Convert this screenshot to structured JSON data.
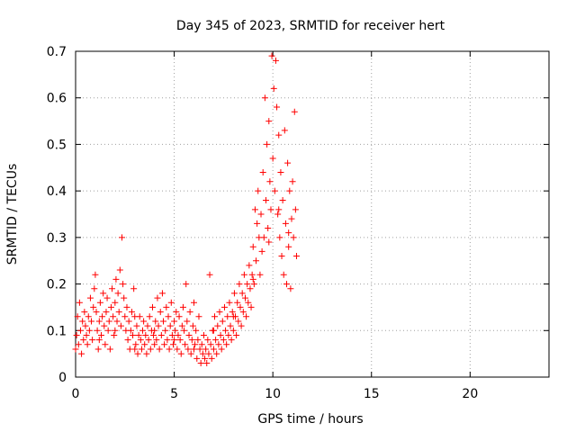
{
  "chart_data": {
    "type": "scatter",
    "title": "Day 345 of 2023, SRMTID for receiver hert",
    "xlabel": "GPS time / hours",
    "ylabel": "SRMTID / TECUs",
    "xlim": [
      0,
      24
    ],
    "ylim": [
      0,
      0.7
    ],
    "x_ticks": [
      0,
      5,
      10,
      15,
      20
    ],
    "x_tick_labels": [
      "0",
      "5",
      "10",
      "15",
      "20"
    ],
    "y_ticks": [
      0,
      0.1,
      0.2,
      0.3,
      0.4,
      0.5,
      0.6,
      0.7
    ],
    "y_tick_labels": [
      "0",
      "0.1",
      "0.2",
      "0.3",
      "0.4",
      "0.5",
      "0.6",
      "0.7"
    ],
    "grid": true,
    "marker": "+",
    "series": [
      {
        "name": "hert",
        "color": "#ff0000",
        "points": [
          [
            0.0,
            0.06
          ],
          [
            0.05,
            0.09
          ],
          [
            0.1,
            0.13
          ],
          [
            0.15,
            0.07
          ],
          [
            0.2,
            0.16
          ],
          [
            0.25,
            0.1
          ],
          [
            0.3,
            0.05
          ],
          [
            0.35,
            0.12
          ],
          [
            0.4,
            0.08
          ],
          [
            0.45,
            0.14
          ],
          [
            0.5,
            0.11
          ],
          [
            0.55,
            0.09
          ],
          [
            0.6,
            0.07
          ],
          [
            0.65,
            0.13
          ],
          [
            0.7,
            0.1
          ],
          [
            0.75,
            0.17
          ],
          [
            0.8,
            0.12
          ],
          [
            0.85,
            0.08
          ],
          [
            0.9,
            0.15
          ],
          [
            0.95,
            0.19
          ],
          [
            1.0,
            0.22
          ],
          [
            1.05,
            0.14
          ],
          [
            1.1,
            0.1
          ],
          [
            1.15,
            0.06
          ],
          [
            1.2,
            0.12
          ],
          [
            1.25,
            0.16
          ],
          [
            1.3,
            0.09
          ],
          [
            1.35,
            0.13
          ],
          [
            1.4,
            0.18
          ],
          [
            1.45,
            0.11
          ],
          [
            1.5,
            0.07
          ],
          [
            1.55,
            0.14
          ],
          [
            1.6,
            0.17
          ],
          [
            1.65,
            0.1
          ],
          [
            1.7,
            0.12
          ],
          [
            1.75,
            0.06
          ],
          [
            1.8,
            0.15
          ],
          [
            1.85,
            0.19
          ],
          [
            1.9,
            0.13
          ],
          [
            1.95,
            0.09
          ],
          [
            2.0,
            0.16
          ],
          [
            2.05,
            0.21
          ],
          [
            2.1,
            0.12
          ],
          [
            2.15,
            0.18
          ],
          [
            2.2,
            0.14
          ],
          [
            2.25,
            0.23
          ],
          [
            2.3,
            0.11
          ],
          [
            2.35,
            0.3
          ],
          [
            2.4,
            0.2
          ],
          [
            2.45,
            0.17
          ],
          [
            2.5,
            0.13
          ],
          [
            2.55,
            0.1
          ],
          [
            2.6,
            0.15
          ],
          [
            2.65,
            0.08
          ],
          [
            2.7,
            0.12
          ],
          [
            2.75,
            0.06
          ],
          [
            2.8,
            0.1
          ],
          [
            2.85,
            0.14
          ],
          [
            2.9,
            0.09
          ],
          [
            2.95,
            0.19
          ],
          [
            3.0,
            0.13
          ],
          [
            3.05,
            0.07
          ],
          [
            3.1,
            0.11
          ],
          [
            3.15,
            0.05
          ],
          [
            3.2,
            0.09
          ],
          [
            3.25,
            0.13
          ],
          [
            3.3,
            0.08
          ],
          [
            3.35,
            0.06
          ],
          [
            3.4,
            0.1
          ],
          [
            3.45,
            0.12
          ],
          [
            3.5,
            0.07
          ],
          [
            3.55,
            0.09
          ],
          [
            3.6,
            0.05
          ],
          [
            3.65,
            0.11
          ],
          [
            3.7,
            0.08
          ],
          [
            3.75,
            0.13
          ],
          [
            3.8,
            0.06
          ],
          [
            3.85,
            0.1
          ],
          [
            3.9,
            0.15
          ],
          [
            3.95,
            0.09
          ],
          [
            4.0,
            0.07
          ],
          [
            4.05,
            0.12
          ],
          [
            4.1,
            0.08
          ],
          [
            4.15,
            0.17
          ],
          [
            4.2,
            0.11
          ],
          [
            4.25,
            0.06
          ],
          [
            4.3,
            0.14
          ],
          [
            4.35,
            0.09
          ],
          [
            4.4,
            0.18
          ],
          [
            4.45,
            0.12
          ],
          [
            4.5,
            0.07
          ],
          [
            4.55,
            0.1
          ],
          [
            4.6,
            0.15
          ],
          [
            4.65,
            0.08
          ],
          [
            4.7,
            0.13
          ],
          [
            4.75,
            0.06
          ],
          [
            4.8,
            0.11
          ],
          [
            4.85,
            0.16
          ],
          [
            4.9,
            0.09
          ],
          [
            4.95,
            0.07
          ],
          [
            5.0,
            0.12
          ],
          [
            5.05,
            0.1
          ],
          [
            5.1,
            0.14
          ],
          [
            5.15,
            0.06
          ],
          [
            5.2,
            0.09
          ],
          [
            5.25,
            0.13
          ],
          [
            5.3,
            0.08
          ],
          [
            5.35,
            0.05
          ],
          [
            5.4,
            0.11
          ],
          [
            5.45,
            0.15
          ],
          [
            5.5,
            0.1
          ],
          [
            5.55,
            0.07
          ],
          [
            5.6,
            0.2
          ],
          [
            5.65,
            0.12
          ],
          [
            5.7,
            0.06
          ],
          [
            5.75,
            0.09
          ],
          [
            5.8,
            0.14
          ],
          [
            5.85,
            0.05
          ],
          [
            5.9,
            0.08
          ],
          [
            5.95,
            0.11
          ],
          [
            6.0,
            0.16
          ],
          [
            6.05,
            0.07
          ],
          [
            6.1,
            0.1
          ],
          [
            6.15,
            0.04
          ],
          [
            6.2,
            0.08
          ],
          [
            6.25,
            0.13
          ],
          [
            6.3,
            0.06
          ],
          [
            6.35,
            0.03
          ],
          [
            6.4,
            0.07
          ],
          [
            6.45,
            0.05
          ],
          [
            6.5,
            0.09
          ],
          [
            6.55,
            0.04
          ],
          [
            6.6,
            0.06
          ],
          [
            6.65,
            0.03
          ],
          [
            6.7,
            0.08
          ],
          [
            6.75,
            0.05
          ],
          [
            6.8,
            0.22
          ],
          [
            6.85,
            0.07
          ],
          [
            6.9,
            0.04
          ],
          [
            6.95,
            0.1
          ],
          [
            7.0,
            0.06
          ],
          [
            7.05,
            0.13
          ],
          [
            7.1,
            0.08
          ],
          [
            7.15,
            0.05
          ],
          [
            7.2,
            0.11
          ],
          [
            7.25,
            0.07
          ],
          [
            7.3,
            0.14
          ],
          [
            7.35,
            0.09
          ],
          [
            7.4,
            0.06
          ],
          [
            7.45,
            0.12
          ],
          [
            7.5,
            0.08
          ],
          [
            7.55,
            0.15
          ],
          [
            7.6,
            0.1
          ],
          [
            7.65,
            0.07
          ],
          [
            7.7,
            0.13
          ],
          [
            7.75,
            0.09
          ],
          [
            7.8,
            0.16
          ],
          [
            7.85,
            0.11
          ],
          [
            7.9,
            0.08
          ],
          [
            7.95,
            0.14
          ],
          [
            8.0,
            0.1
          ],
          [
            8.05,
            0.18
          ],
          [
            8.1,
            0.13
          ],
          [
            8.15,
            0.09
          ],
          [
            8.2,
            0.16
          ],
          [
            8.25,
            0.12
          ],
          [
            8.3,
            0.2
          ],
          [
            8.35,
            0.15
          ],
          [
            8.4,
            0.11
          ],
          [
            8.45,
            0.18
          ],
          [
            8.5,
            0.14
          ],
          [
            8.55,
            0.22
          ],
          [
            8.6,
            0.17
          ],
          [
            8.65,
            0.13
          ],
          [
            8.7,
            0.2
          ],
          [
            8.75,
            0.16
          ],
          [
            8.8,
            0.24
          ],
          [
            8.85,
            0.19
          ],
          [
            8.9,
            0.15
          ],
          [
            8.95,
            0.22
          ],
          [
            9.0,
            0.28
          ],
          [
            9.05,
            0.2
          ],
          [
            9.1,
            0.36
          ],
          [
            9.15,
            0.25
          ],
          [
            9.2,
            0.33
          ],
          [
            9.25,
            0.4
          ],
          [
            9.3,
            0.3
          ],
          [
            9.35,
            0.22
          ],
          [
            9.4,
            0.35
          ],
          [
            9.45,
            0.27
          ],
          [
            9.5,
            0.44
          ],
          [
            9.55,
            0.3
          ],
          [
            9.6,
            0.6
          ],
          [
            9.65,
            0.38
          ],
          [
            9.7,
            0.5
          ],
          [
            9.75,
            0.32
          ],
          [
            9.8,
            0.55
          ],
          [
            9.85,
            0.42
          ],
          [
            9.9,
            0.36
          ],
          [
            9.95,
            0.69
          ],
          [
            10.0,
            0.47
          ],
          [
            10.05,
            0.62
          ],
          [
            10.1,
            0.4
          ],
          [
            10.15,
            0.68
          ],
          [
            10.2,
            0.58
          ],
          [
            10.25,
            0.35
          ],
          [
            10.3,
            0.52
          ],
          [
            10.35,
            0.3
          ],
          [
            10.4,
            0.44
          ],
          [
            10.45,
            0.26
          ],
          [
            10.5,
            0.38
          ],
          [
            10.55,
            0.22
          ],
          [
            10.6,
            0.53
          ],
          [
            10.65,
            0.33
          ],
          [
            10.7,
            0.2
          ],
          [
            10.75,
            0.46
          ],
          [
            10.8,
            0.28
          ],
          [
            10.85,
            0.4
          ],
          [
            10.9,
            0.19
          ],
          [
            10.95,
            0.34
          ],
          [
            11.0,
            0.42
          ],
          [
            11.05,
            0.3
          ],
          [
            11.1,
            0.57
          ],
          [
            11.15,
            0.36
          ],
          [
            11.2,
            0.26
          ],
          [
            1.2,
            0.08
          ],
          [
            2.0,
            0.1
          ],
          [
            3.0,
            0.06
          ],
          [
            4.0,
            0.1
          ],
          [
            5.0,
            0.08
          ],
          [
            6.0,
            0.06
          ],
          [
            7.0,
            0.1
          ],
          [
            8.0,
            0.13
          ],
          [
            9.0,
            0.21
          ],
          [
            9.8,
            0.29
          ],
          [
            10.3,
            0.36
          ],
          [
            10.8,
            0.31
          ]
        ]
      }
    ]
  }
}
